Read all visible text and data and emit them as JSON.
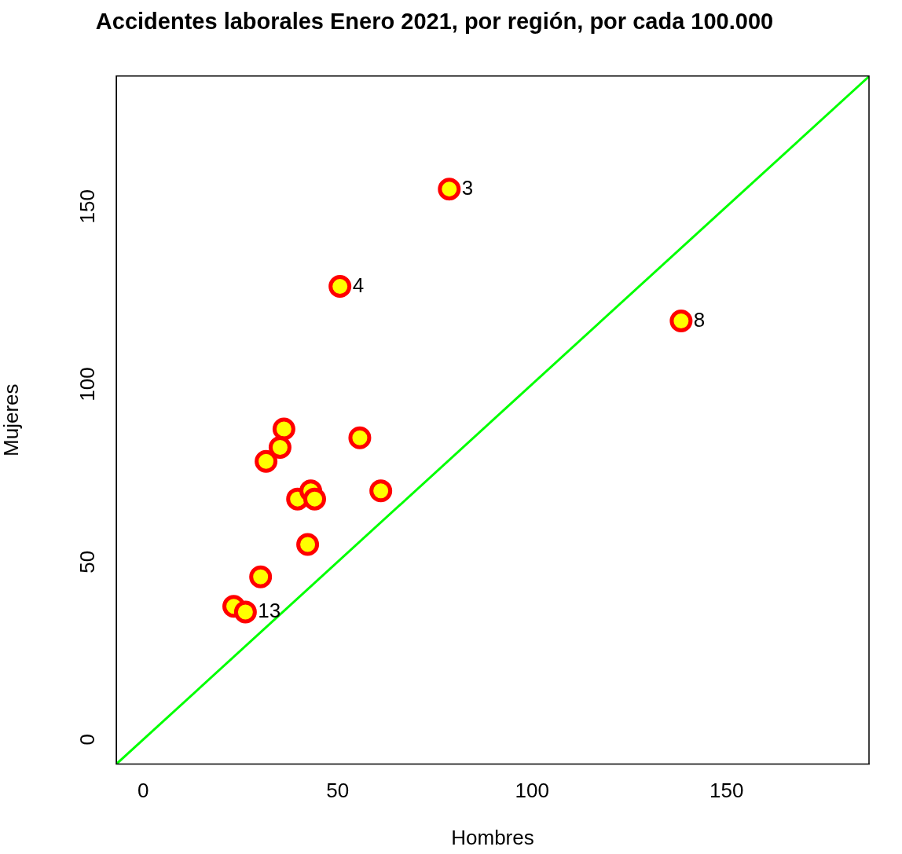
{
  "chart_data": {
    "type": "scatter",
    "title": "Accidentes laborales Enero 2021, por región, por cada 100.000",
    "xlabel": "Hombres",
    "ylabel": "Mujeres",
    "xlim": [
      -6.9,
      186.6
    ],
    "ylim": [
      -6.9,
      186.7
    ],
    "xticks": [
      0,
      50,
      100,
      150
    ],
    "yticks": [
      0,
      50,
      100,
      150
    ],
    "grid": false,
    "legend": false,
    "marker": "circle",
    "series": [
      {
        "color": "#ffff00",
        "x": [
          78.7,
          50.6,
          138.3,
          36.2,
          35.2,
          31.6,
          55.7,
          61.1,
          39.7,
          43.1,
          44.1,
          42.3,
          30.2,
          23.3,
          26.3
        ],
        "values": [
          154.9,
          127.5,
          117.8,
          87.4,
          82.2,
          78.3,
          84.9,
          70.0,
          67.7,
          70.0,
          67.7,
          54.9,
          45.8,
          37.5,
          35.9
        ]
      },
      {
        "type": "line",
        "color": "#00ff00",
        "marker": "none",
        "x": [
          -6.9,
          186.6
        ],
        "values": [
          -6.9,
          186.6
        ]
      }
    ],
    "annotations": [
      {
        "text": "3",
        "x": 78.7,
        "y": 154.9
      },
      {
        "text": "4",
        "x": 50.6,
        "y": 127.5
      },
      {
        "text": "8",
        "x": 138.3,
        "y": 117.8
      },
      {
        "text": "13",
        "x": 26.3,
        "y": 35.9
      }
    ]
  }
}
